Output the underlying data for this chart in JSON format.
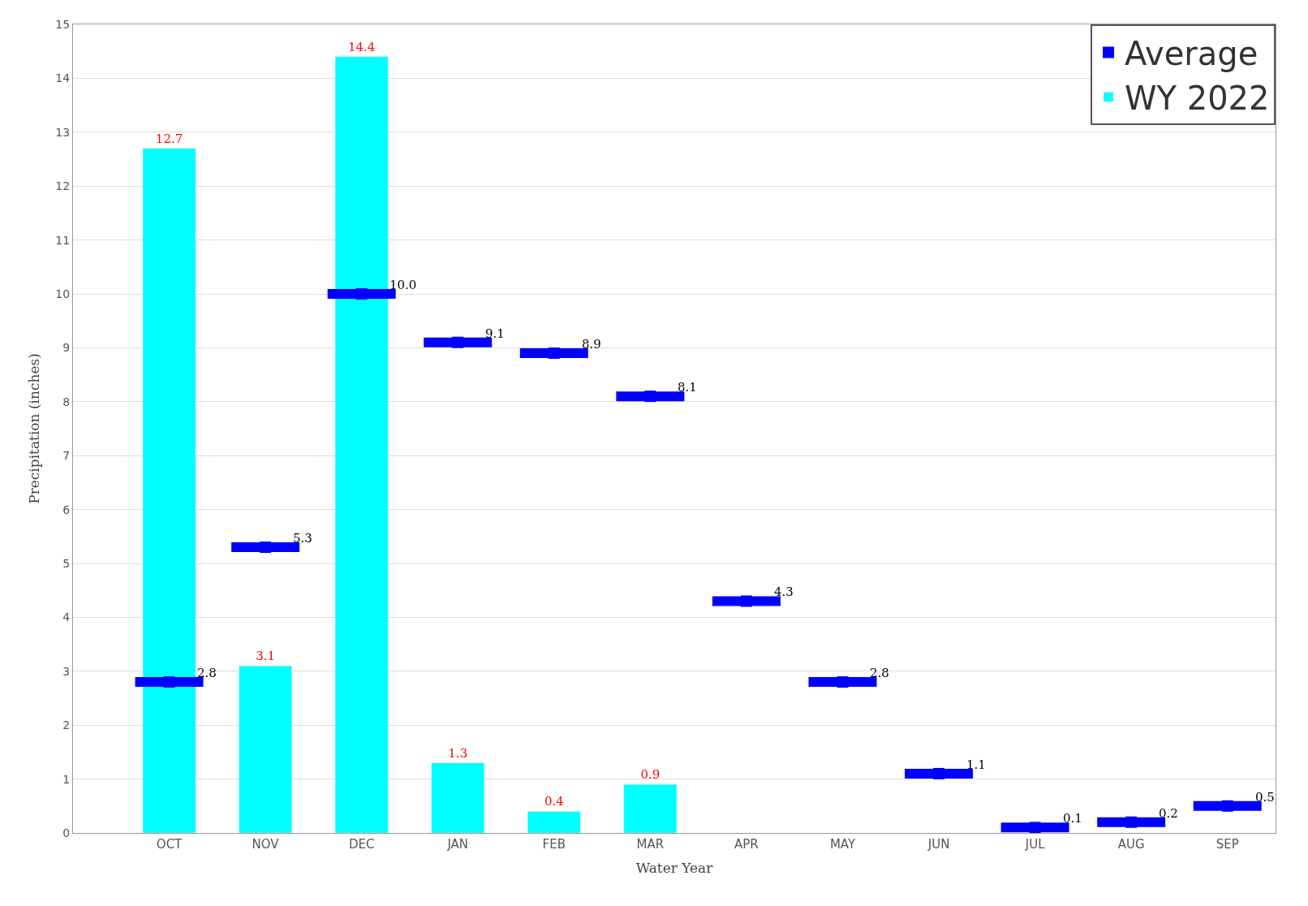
{
  "chart_data": {
    "type": "bar",
    "xlabel": "Water Year",
    "ylabel": "Precipitation (inches)",
    "categories": [
      "OCT",
      "NOV",
      "DEC",
      "JAN",
      "FEB",
      "MAR",
      "APR",
      "MAY",
      "JUN",
      "JUL",
      "AUG",
      "SEP"
    ],
    "series": [
      {
        "name": "Average",
        "type": "scatter",
        "color": "#0000ff",
        "values": [
          2.8,
          5.3,
          10.0,
          9.1,
          8.9,
          8.1,
          4.3,
          2.8,
          1.1,
          0.1,
          0.2,
          0.5
        ],
        "value_labels": [
          "2.8",
          "5.3",
          "10.0",
          "9.1",
          "8.9",
          "8.1",
          "4.3",
          "2.8",
          "1.1",
          "0.1",
          "0.2",
          "0.5"
        ]
      },
      {
        "name": "WY 2022",
        "color": "#00ffff",
        "values": [
          12.7,
          3.1,
          14.4,
          1.3,
          0.4,
          0.9,
          null,
          null,
          null,
          null,
          null,
          null
        ]
      }
    ],
    "ylim": [
      0,
      15
    ],
    "yticks": [
      0,
      1,
      2,
      3,
      4,
      5,
      6,
      7,
      8,
      9,
      10,
      11,
      12,
      13,
      14,
      15
    ],
    "grid": "y",
    "legend": "top right",
    "data_labels": true
  }
}
